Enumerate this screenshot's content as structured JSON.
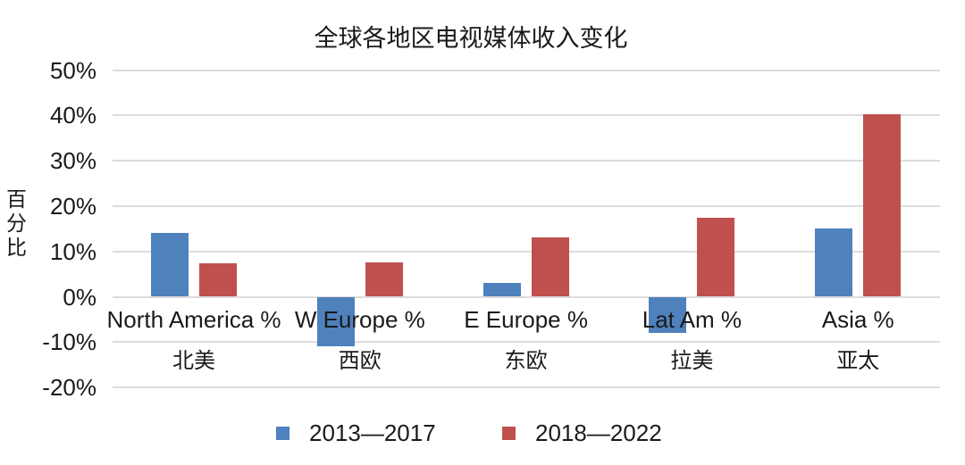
{
  "chart_data": {
    "type": "bar",
    "title": "全球各地区电视媒体收入变化",
    "ylabel": "百分比",
    "xlabel": "",
    "categories": [
      "North America %",
      "W Europe %",
      "E Europe %",
      "Lat Am %",
      "Asia %"
    ],
    "categories_zh": [
      "北美",
      "西欧",
      "东欧",
      "拉美",
      "亚太"
    ],
    "series": [
      {
        "name": "2013—2017",
        "color": "#4f81bd",
        "values": [
          14,
          -11,
          3,
          -8,
          15
        ]
      },
      {
        "name": "2018—2022",
        "color": "#c0504d",
        "values": [
          7.3,
          7.6,
          13,
          17.5,
          40.3
        ]
      }
    ],
    "ylim": [
      -20,
      50
    ],
    "yticks": [
      {
        "value": 50,
        "label": "50%"
      },
      {
        "value": 40,
        "label": "40%"
      },
      {
        "value": 30,
        "label": "30%"
      },
      {
        "value": 20,
        "label": "20%"
      },
      {
        "value": 10,
        "label": "10%"
      },
      {
        "value": 0,
        "label": "0%"
      },
      {
        "value": -10,
        "label": "-10%"
      },
      {
        "value": -20,
        "label": "-20%"
      }
    ],
    "grid": true,
    "gridline_color": "#dcdcdc",
    "text_color": "#1a1a1a",
    "background_color": "#ffffff",
    "legend_position": "bottom"
  }
}
